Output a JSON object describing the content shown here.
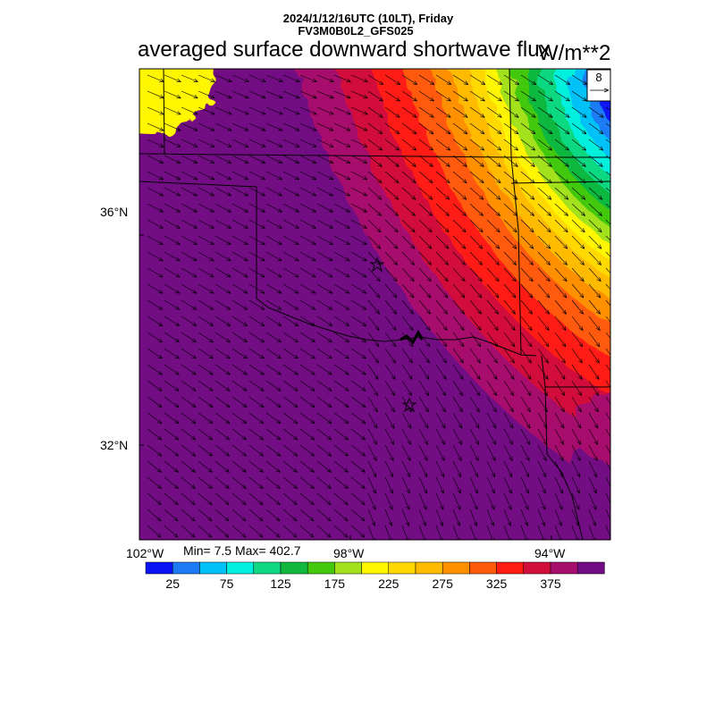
{
  "header": {
    "line1": "2024/1/12/16UTC (10LT), Friday",
    "line2": "FV3M0B0L2_GFS025",
    "title": "averaged surface downward shortwave flux",
    "units": "W/m**2"
  },
  "vector_key": {
    "value": "8"
  },
  "axes": {
    "lat_ticks": [
      "36°N",
      "32°N"
    ],
    "lon_ticks": [
      "102°W",
      "98°W",
      "94°W"
    ]
  },
  "stats": {
    "text": "Min= 7.5 Max= 402.7"
  },
  "colorbar": {
    "labels": [
      "25",
      "75",
      "125",
      "175",
      "225",
      "275",
      "325",
      "375"
    ],
    "colors": [
      "#0a14f5",
      "#1d7bf5",
      "#00c2f8",
      "#00f0dd",
      "#10d882",
      "#10b840",
      "#43c80d",
      "#a2e11b",
      "#fff600",
      "#ffd900",
      "#ffbb00",
      "#ff9000",
      "#ff5a0a",
      "#ff1b12",
      "#d20f3b",
      "#a70f6c",
      "#730c84"
    ]
  },
  "markers": [
    {
      "name": "star-marker-north",
      "symbol": "star"
    },
    {
      "name": "star-marker-south",
      "symbol": "star"
    }
  ]
}
